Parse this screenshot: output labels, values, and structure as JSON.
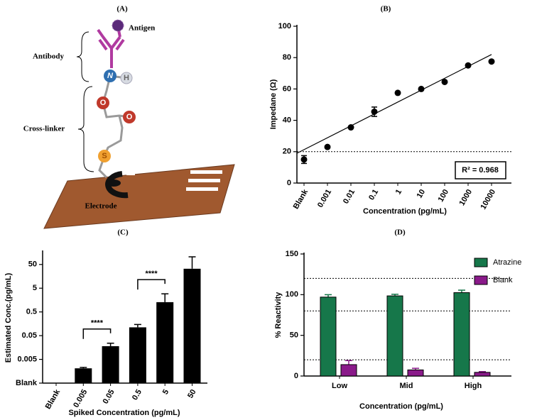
{
  "diagram": {
    "title": "(A)",
    "antigen": "Antigen",
    "antibody": "Antibody",
    "cross_linker": "Cross-linker",
    "electrode": "Electrode",
    "atoms": [
      "N",
      "H",
      "O",
      "O",
      "S"
    ]
  },
  "chart_data": [
    {
      "type": "scatter",
      "title": "(B)",
      "x_label": "Concentration (pg/mL)",
      "y_label": "Impedane (Ω)",
      "categories": [
        "Blank",
        "0.001",
        "0.01",
        "0.1",
        "1",
        "10",
        "100",
        "1000",
        "10000"
      ],
      "values": [
        15,
        23,
        35.5,
        45.5,
        57.5,
        60,
        64.5,
        75,
        77.5
      ],
      "errors": [
        2.5,
        0,
        0,
        3,
        0,
        0,
        0,
        0,
        0
      ],
      "color": "#000000",
      "fit_line": [
        19,
        82
      ],
      "reference_lines": [
        20
      ],
      "annotation": "R² = 0.968",
      "ylim": [
        0,
        100
      ],
      "yticks": [
        0,
        20,
        40,
        60,
        80,
        100
      ],
      "grid": false
    },
    {
      "type": "bar",
      "title": "(C)",
      "x_label": "Spiked Concentration (pg/mL)",
      "y_label": "Estimated Conc.(pg/mL)",
      "categories": [
        "Blank",
        "0.005",
        "0.05",
        "0.5",
        "5",
        "50"
      ],
      "values": [
        null,
        0.0021,
        0.018,
        0.112,
        1.29,
        33
      ],
      "errors": [
        null,
        0.0002,
        0.006,
        0.036,
        1.6,
        72
      ],
      "color": "#000000",
      "log_scale": true,
      "annotations": [
        "****",
        "****"
      ],
      "ylim": [
        0.0005,
        170
      ],
      "yticks": [
        {
          "value": 0.0005,
          "label": "Blank"
        },
        0.005,
        0.05,
        0.5,
        5,
        50
      ],
      "grid": false
    },
    {
      "type": "grouped_bar",
      "title": "(D)",
      "x_label": "Concentration (pg/mL)",
      "y_label": "% Reactivity",
      "categories": [
        "Low",
        "Mid",
        "High"
      ],
      "series": [
        {
          "name": "Atrazine",
          "color": "#16774a",
          "values": [
            97,
            98.5,
            102.5
          ],
          "errors": [
            3,
            2,
            3
          ]
        },
        {
          "name": "Blank",
          "color": "#8a1a8a",
          "values": [
            14,
            7.5,
            4.5
          ],
          "errors": [
            5,
            2,
            1
          ]
        }
      ],
      "reference_lines": [
        20,
        80,
        120
      ],
      "legend": "right",
      "ylim": [
        0,
        150
      ],
      "yticks": [
        0,
        50,
        100,
        150
      ],
      "grid": false
    }
  ]
}
